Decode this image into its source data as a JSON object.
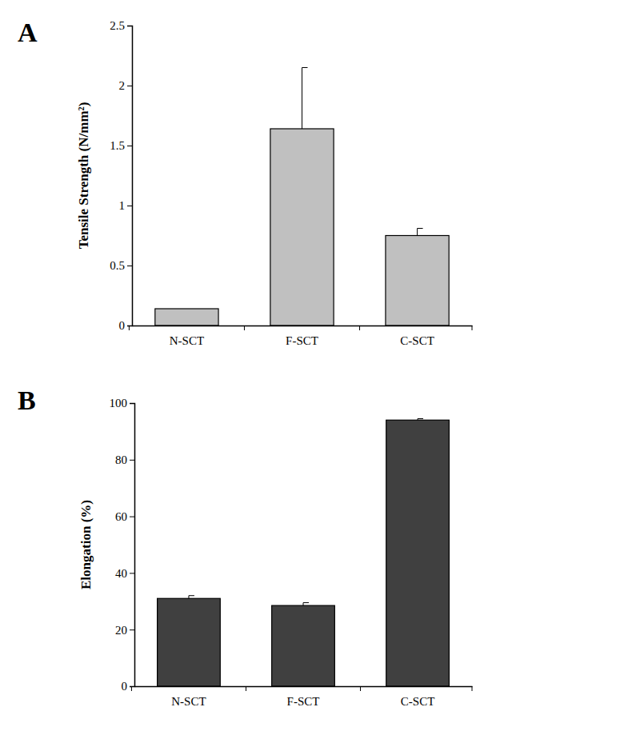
{
  "chart_data": [
    {
      "type": "bar",
      "title": "A",
      "y_label": "Tensile Strength (N/mm²)",
      "categories": [
        "N-SCT",
        "F-SCT",
        "C-SCT"
      ],
      "values": [
        0.14,
        1.64,
        0.75
      ],
      "errors": [
        0,
        0.51,
        0.06
      ],
      "color": "#c0c0c0",
      "ylim": [
        0,
        2.5
      ],
      "yticks": [
        0,
        0.5,
        1,
        1.5,
        2,
        2.5
      ],
      "grid": false
    },
    {
      "type": "bar",
      "title": "B",
      "y_label": "Elongation (%)",
      "categories": [
        "N-SCT",
        "F-SCT",
        "C-SCT"
      ],
      "values": [
        31,
        28.5,
        94
      ],
      "errors": [
        1,
        1,
        0.5
      ],
      "color": "#404040",
      "ylim": [
        0,
        100
      ],
      "yticks": [
        0,
        20,
        40,
        60,
        80,
        100
      ],
      "grid": false
    }
  ]
}
